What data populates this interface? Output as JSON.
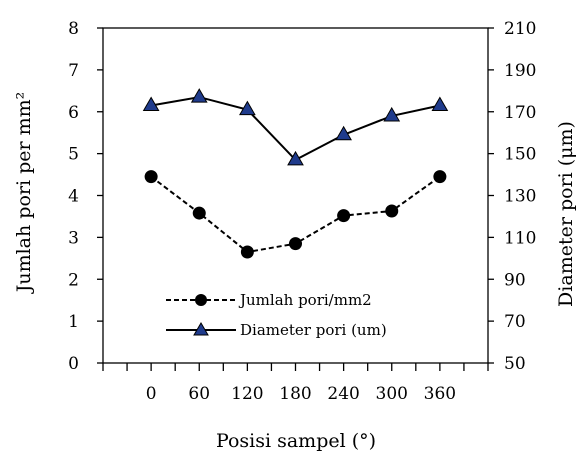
{
  "chart_data": {
    "type": "line",
    "xlabel": "Posisi sampel (°)",
    "ylabel_left": "Jumlah pori per  mm²",
    "ylabel_right": "Diameter pori (μm)",
    "x": [
      0,
      60,
      120,
      180,
      240,
      300,
      360
    ],
    "x_tick_labels": [
      "0",
      "60",
      "120",
      "180",
      "240",
      "300",
      "360"
    ],
    "xlim": [
      -60,
      420
    ],
    "ylim_left": [
      0,
      8
    ],
    "yticks_left": [
      "0",
      "1",
      "2",
      "3",
      "4",
      "5",
      "6",
      "7",
      "8"
    ],
    "ylim_right": [
      50,
      210
    ],
    "yticks_right": [
      "50",
      "70",
      "90",
      "110",
      "130",
      "150",
      "170",
      "190",
      "210"
    ],
    "grid": false,
    "legend_position": "bottom-center",
    "series": [
      {
        "name": "Jumlah pori/mm2",
        "axis": "left",
        "line_style": "dashed",
        "marker": "circle",
        "color": "#000000",
        "values": [
          4.45,
          3.58,
          2.65,
          2.85,
          3.52,
          3.63,
          4.45
        ]
      },
      {
        "name": "Diameter pori (um)",
        "axis": "right",
        "line_style": "solid",
        "marker": "triangle",
        "color": "#000000",
        "marker_fill": "#1f3b8c",
        "values": [
          173,
          177,
          171,
          147,
          159,
          168,
          173
        ]
      }
    ]
  }
}
